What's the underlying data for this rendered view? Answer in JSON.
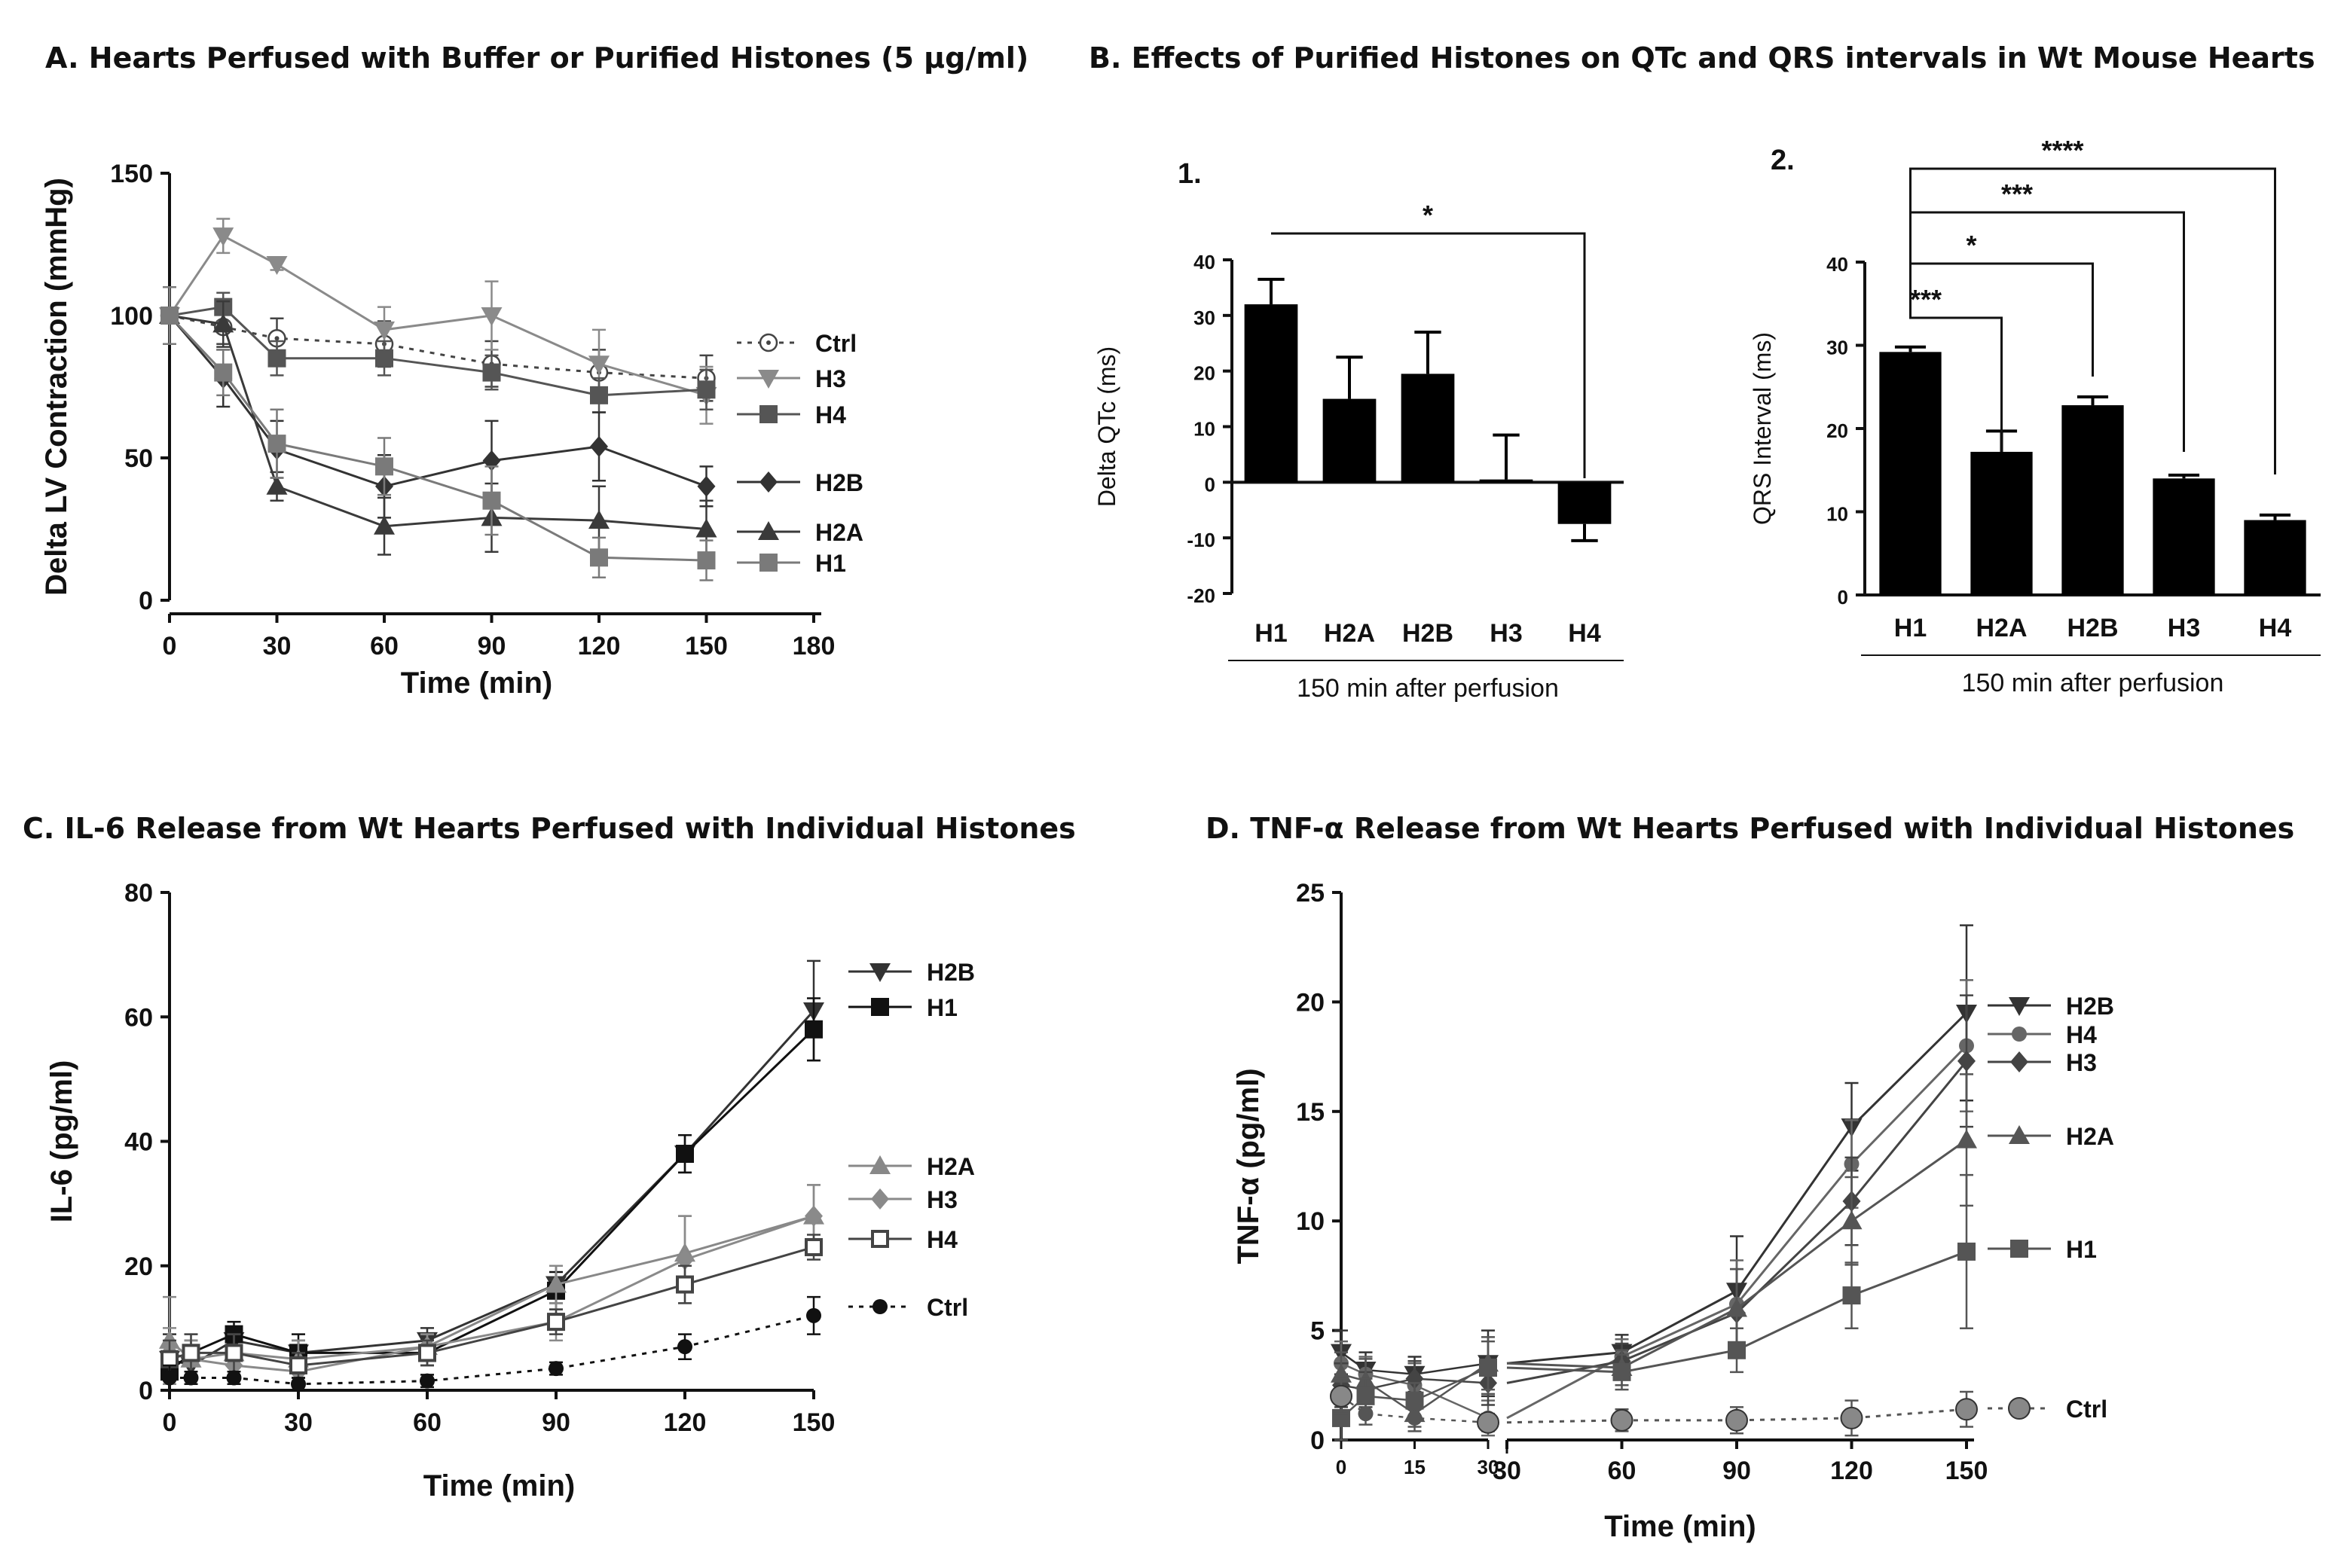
{
  "titles": {
    "a": "A. Hearts Perfused with Buffer or Purified Histones (5 µg/ml)",
    "b": "B. Effects of Purified Histones on QTc and QRS intervals in Wt Mouse Hearts",
    "c": "C. IL-6 Release from Wt Hearts Perfused with Individual Histones",
    "d": "D. TNF-α Release from Wt Hearts Perfused with Individual Histones"
  },
  "chart_data": [
    {
      "id": "A",
      "type": "line",
      "xlabel": "Time (min)",
      "ylabel": "Delta LV Contraction (mmHg)",
      "xlim": [
        0,
        180
      ],
      "ylim": [
        0,
        150
      ],
      "xticks": [
        "0",
        "30",
        "60",
        "90",
        "120",
        "150",
        "180"
      ],
      "yticks": [
        "0",
        "50",
        "100",
        "150"
      ],
      "x": [
        0,
        15,
        30,
        60,
        90,
        120,
        150
      ],
      "series": [
        {
          "name": "Ctrl",
          "color": "#444444",
          "marker": "circle-dot",
          "dashed": true,
          "values": [
            100,
            96,
            92,
            90,
            83,
            80,
            78
          ],
          "err": [
            10,
            6,
            7,
            8,
            8,
            8,
            8
          ]
        },
        {
          "name": "H3",
          "color": "#8a8a8a",
          "marker": "tri-down",
          "values": [
            100,
            128,
            118,
            95,
            100,
            83,
            72
          ],
          "err": [
            10,
            6,
            2,
            8,
            12,
            12,
            10
          ]
        },
        {
          "name": "H4",
          "color": "#555555",
          "marker": "square",
          "values": [
            100,
            103,
            85,
            85,
            80,
            72,
            74
          ],
          "err": [
            10,
            5,
            6,
            6,
            6,
            6,
            7
          ]
        },
        {
          "name": "H2B",
          "color": "#333333",
          "marker": "diamond",
          "values": [
            100,
            78,
            53,
            40,
            49,
            54,
            40
          ],
          "err": [
            10,
            10,
            10,
            11,
            14,
            12,
            7
          ]
        },
        {
          "name": "H2A",
          "color": "#3a3a3a",
          "marker": "tri-up",
          "values": [
            100,
            97,
            40,
            26,
            29,
            28,
            25
          ],
          "err": [
            10,
            8,
            5,
            10,
            12,
            12,
            10
          ]
        },
        {
          "name": "H1",
          "color": "#7a7a7a",
          "marker": "square",
          "values": [
            100,
            80,
            55,
            47,
            35,
            15,
            14
          ],
          "err": [
            10,
            8,
            12,
            10,
            12,
            7,
            7
          ]
        }
      ]
    },
    {
      "id": "B1",
      "type": "bar",
      "label": "1.",
      "categories": [
        "H1",
        "H2A",
        "H2B",
        "H3",
        "H4"
      ],
      "values": [
        32,
        15,
        19.5,
        0.5,
        -7.5
      ],
      "err": [
        4.5,
        7.5,
        7.5,
        8,
        3
      ],
      "ylabel": "Delta QTc (ms)",
      "ylim": [
        -20,
        40
      ],
      "yticks": [
        "-20",
        "-10",
        "0",
        "10",
        "20",
        "30",
        "40"
      ],
      "subtitle": "150 min after perfusion",
      "significance": [
        {
          "from": "H1",
          "to": "H4",
          "label": "*"
        }
      ]
    },
    {
      "id": "B2",
      "type": "bar",
      "label": "2.",
      "categories": [
        "H1",
        "H2A",
        "H2B",
        "H3",
        "H4"
      ],
      "values": [
        29.2,
        17.2,
        22.8,
        14,
        9
      ],
      "err": [
        0.6,
        2.5,
        1,
        0.4,
        0.6
      ],
      "ylabel": "QRS Interval (ms)",
      "ylim": [
        0,
        40
      ],
      "yticks": [
        "0",
        "10",
        "20",
        "30",
        "40"
      ],
      "subtitle": "150 min after perfusion",
      "significance": [
        {
          "from": "H1",
          "to": "H2A",
          "label": "***"
        },
        {
          "from": "H1",
          "to": "H2B",
          "label": "*"
        },
        {
          "from": "H1",
          "to": "H3",
          "label": "***"
        },
        {
          "from": "H1",
          "to": "H4",
          "label": "****"
        }
      ]
    },
    {
      "id": "C",
      "type": "line",
      "xlabel": "Time (min)",
      "ylabel": "IL-6 (pg/ml)",
      "xlim": [
        0,
        150
      ],
      "ylim": [
        0,
        80
      ],
      "xticks": [
        "0",
        "30",
        "60",
        "90",
        "120",
        "150"
      ],
      "yticks": [
        "0",
        "20",
        "40",
        "60",
        "80"
      ],
      "x": [
        0,
        5,
        15,
        30,
        60,
        90,
        120,
        150
      ],
      "series": [
        {
          "name": "H2B",
          "color": "#333333",
          "marker": "tri-down",
          "values": [
            5,
            4,
            8,
            6,
            8,
            17,
            38,
            61
          ],
          "err": [
            4,
            3,
            2,
            2,
            2,
            3,
            3,
            8
          ]
        },
        {
          "name": "H1",
          "color": "#111111",
          "marker": "square",
          "values": [
            3,
            6,
            9,
            6,
            6,
            16,
            38,
            58
          ],
          "err": [
            3,
            2,
            2,
            3,
            2,
            3,
            3,
            5
          ]
        },
        {
          "name": "H2A",
          "color": "#888888",
          "marker": "tri-up",
          "values": [
            8,
            5,
            6,
            5,
            7,
            17,
            22,
            28
          ],
          "err": [
            7,
            4,
            3,
            3,
            2,
            3,
            6,
            5
          ]
        },
        {
          "name": "H3",
          "color": "#8a8a8a",
          "marker": "diamond",
          "values": [
            6,
            5,
            4,
            3,
            7,
            11,
            21,
            28
          ],
          "err": [
            4,
            3,
            3,
            2,
            2,
            3,
            7,
            5
          ]
        },
        {
          "name": "H4",
          "color": "#444444",
          "marker": "square-open",
          "values": [
            5,
            6,
            6,
            4,
            6,
            11,
            17,
            23
          ],
          "err": [
            3,
            3,
            3,
            2,
            2,
            2,
            3,
            2
          ]
        },
        {
          "name": "Ctrl",
          "color": "#111111",
          "marker": "circle",
          "dashed": true,
          "values": [
            2,
            2,
            2,
            1,
            1.5,
            3.5,
            7,
            12
          ],
          "err": [
            2,
            1,
            1,
            1,
            1,
            1,
            2,
            3
          ]
        }
      ]
    },
    {
      "id": "D",
      "type": "line",
      "xlabel": "Time (min)",
      "ylabel": "TNF-α (pg/ml)",
      "ylim": [
        0,
        25
      ],
      "yticks": [
        "0",
        "5",
        "10",
        "15",
        "20",
        "25"
      ],
      "segments": [
        {
          "xlim": [
            0,
            30
          ],
          "xticks": [
            "0",
            "15",
            "30"
          ]
        },
        {
          "xlim": [
            30,
            150
          ],
          "xticks": [
            "30",
            "60",
            "90",
            "120",
            "150"
          ]
        }
      ],
      "x": [
        0,
        5,
        15,
        30,
        60,
        90,
        120,
        150
      ],
      "series": [
        {
          "name": "H2B",
          "color": "#333333",
          "marker": "tri-down",
          "values": [
            4,
            3.2,
            3,
            3.5,
            4,
            6.8,
            14.3,
            19.5
          ],
          "err": [
            1,
            0.8,
            0.8,
            1.5,
            0.8,
            2.5,
            2,
            4
          ]
        },
        {
          "name": "H4",
          "color": "#666666",
          "marker": "circle",
          "values": [
            3.5,
            3,
            2.5,
            1,
            3.8,
            6.2,
            12.6,
            18
          ],
          "err": [
            1,
            0.8,
            1,
            0.8,
            0.8,
            2,
            2,
            3
          ]
        },
        {
          "name": "H3",
          "color": "#444444",
          "marker": "diamond",
          "values": [
            2.5,
            2.3,
            2.8,
            2.6,
            3.6,
            5.8,
            10.9,
            17.3
          ],
          "err": [
            1,
            0.8,
            0.8,
            1,
            0.8,
            2,
            2,
            3
          ]
        },
        {
          "name": "H2A",
          "color": "#555555",
          "marker": "tri-up",
          "values": [
            3,
            2.7,
            1.2,
            3.5,
            3.3,
            6,
            10,
            13.7
          ],
          "err": [
            1,
            1,
            0.8,
            1.2,
            0.8,
            1.8,
            2,
            3
          ]
        },
        {
          "name": "H1",
          "color": "#555555",
          "marker": "square",
          "values": [
            1,
            2,
            1.8,
            3.3,
            3.1,
            4.1,
            6.6,
            8.6
          ],
          "err": [
            1,
            0.8,
            0.8,
            1.2,
            0.8,
            1,
            1.5,
            3.5
          ]
        },
        {
          "name": "Ctrl",
          "color": "#555555",
          "marker": "circle-big",
          "dashed": true,
          "values": [
            2,
            1.2,
            1,
            0.8,
            0.9,
            0.9,
            1,
            1.4
          ],
          "err": [
            0.8,
            0.5,
            0.4,
            0.4,
            0.5,
            0.6,
            0.8,
            0.8
          ]
        }
      ]
    }
  ]
}
